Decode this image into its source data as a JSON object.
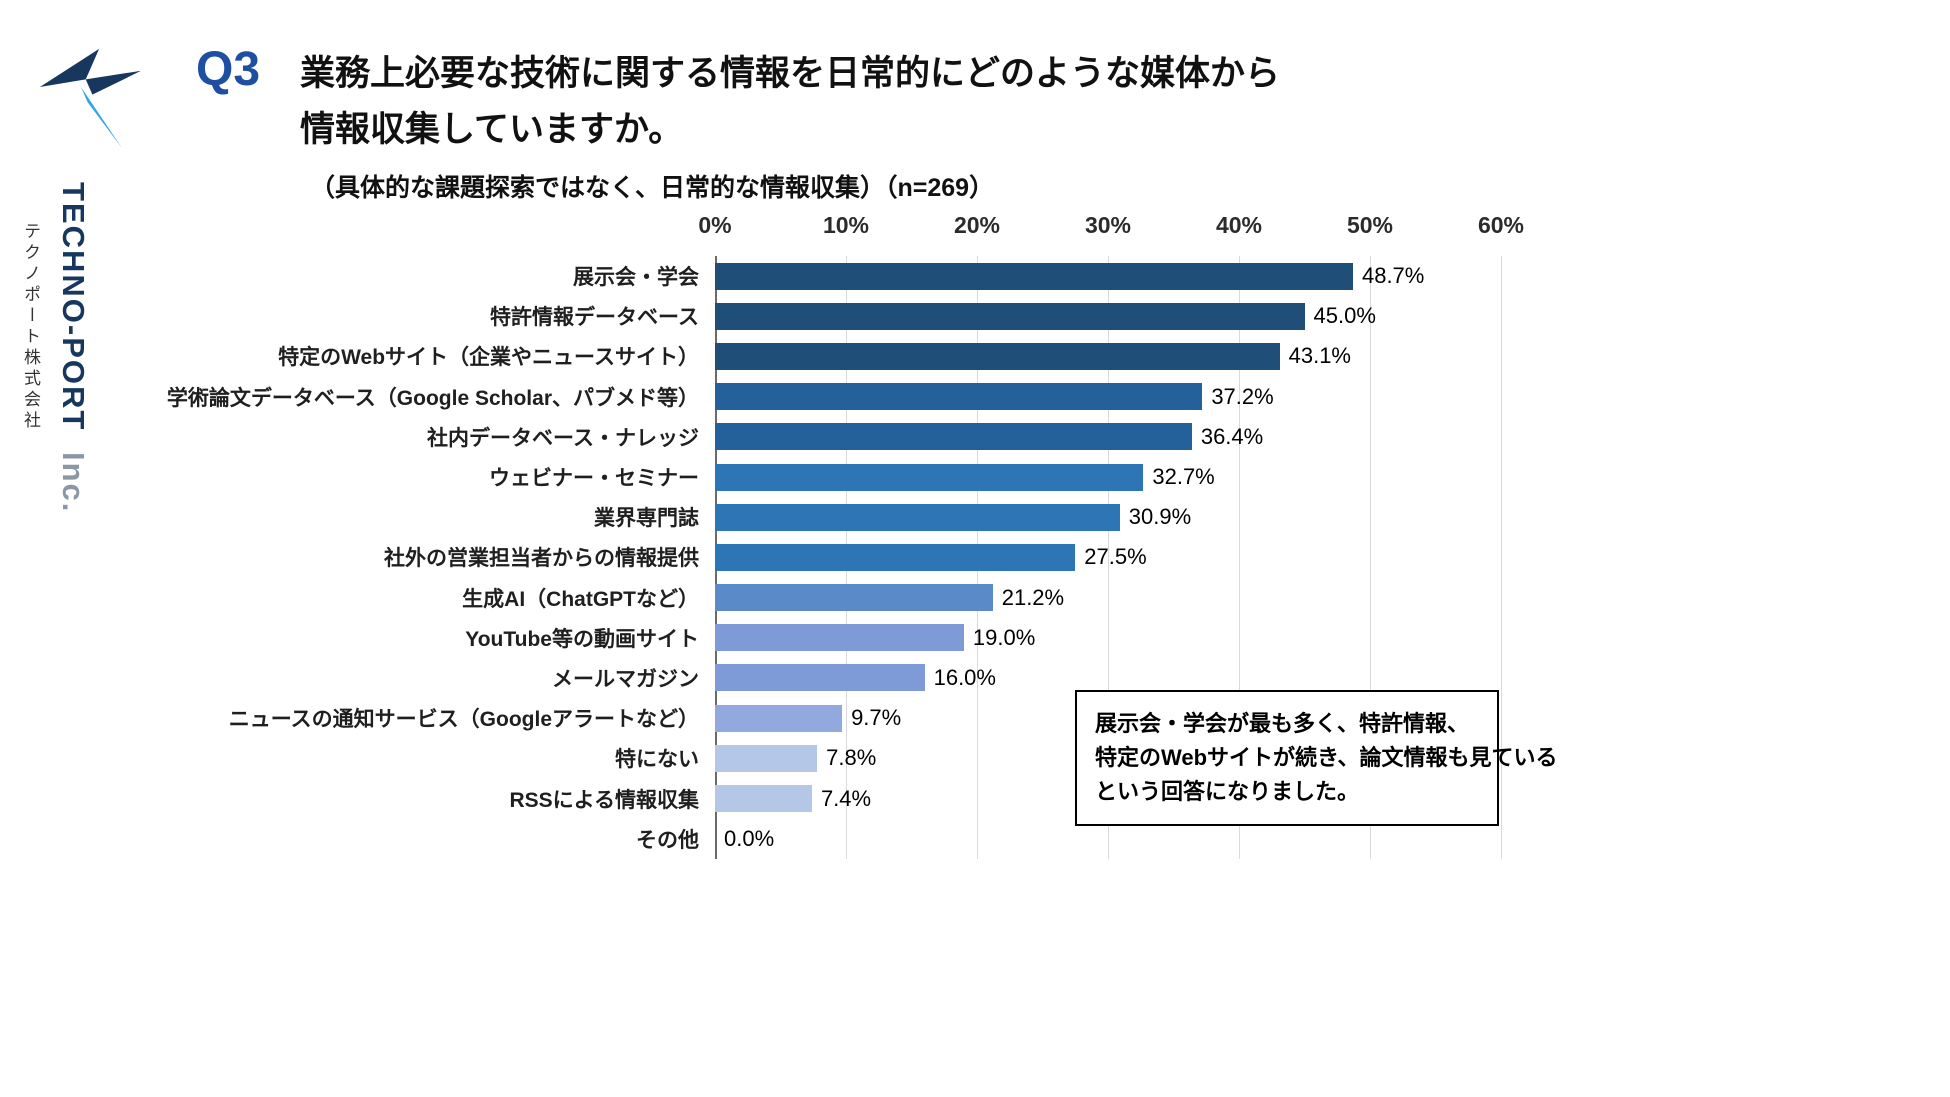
{
  "logo": {
    "company_en_main": "TECHNO-PORT",
    "company_en_suffix": "Inc.",
    "company_jp": "テクノポート株式会社"
  },
  "header": {
    "q_label": "Q3",
    "title_line1": "業務上必要な技術に関する情報を日常的にどのような媒体から",
    "title_line2": "情報収集していますか。",
    "subtitle": "（具体的な課題探索ではなく、日常的な情報収集）（n=269）"
  },
  "chart_data": {
    "type": "bar",
    "orientation": "horizontal",
    "title": "業務上必要な技術に関する情報を日常的にどのような媒体から情報収集していますか。",
    "n": 269,
    "xlim": [
      0,
      66
    ],
    "grid": true,
    "x_ticks": [
      "0%",
      "10%",
      "20%",
      "30%",
      "40%",
      "50%",
      "60%"
    ],
    "x_tick_values": [
      0,
      10,
      20,
      30,
      40,
      50,
      60
    ],
    "categories": [
      "展示会・学会",
      "特許情報データベース",
      "特定のWebサイト（企業やニュースサイト）",
      "学術論文データベース（Google Scholar、パブメド等）",
      "社内データベース・ナレッジ",
      "ウェビナー・セミナー",
      "業界専門誌",
      "社外の営業担当者からの情報提供",
      "生成AI（ChatGPTなど）",
      "YouTube等の動画サイト",
      "メールマガジン",
      "ニュースの通知サービス（Googleアラートなど）",
      "特にない",
      "RSSによる情報収集",
      "その他"
    ],
    "values": [
      48.7,
      45.0,
      43.1,
      37.2,
      36.4,
      32.7,
      30.9,
      27.5,
      21.2,
      19.0,
      16.0,
      9.7,
      7.8,
      7.4,
      0.0
    ],
    "value_labels": [
      "48.7%",
      "45.0%",
      "43.1%",
      "37.2%",
      "36.4%",
      "32.7%",
      "30.9%",
      "27.5%",
      "21.2%",
      "19.0%",
      "16.0%",
      "9.7%",
      "7.8%",
      "7.4%",
      "0.0%"
    ],
    "bar_colors": [
      "#1F4E79",
      "#1F4E79",
      "#1F4E79",
      "#24619B",
      "#24619B",
      "#2E75B6",
      "#2E75B6",
      "#2E75B6",
      "#5B8AC9",
      "#7E9BD7",
      "#7E9BD7",
      "#92A9DE",
      "#B4C7E7",
      "#B4C7E7",
      "#B4C7E7"
    ],
    "accent_colors": {
      "dark_navy": "#1F4E79",
      "medium_blue": "#2E75B6",
      "light_blue": "#B4C7E7"
    }
  },
  "annotation": {
    "lines": [
      "展示会・学会が最も多く、特許情報、",
      "特定のWebサイトが続き、論文情報も見ている",
      "という回答になりました。"
    ]
  }
}
